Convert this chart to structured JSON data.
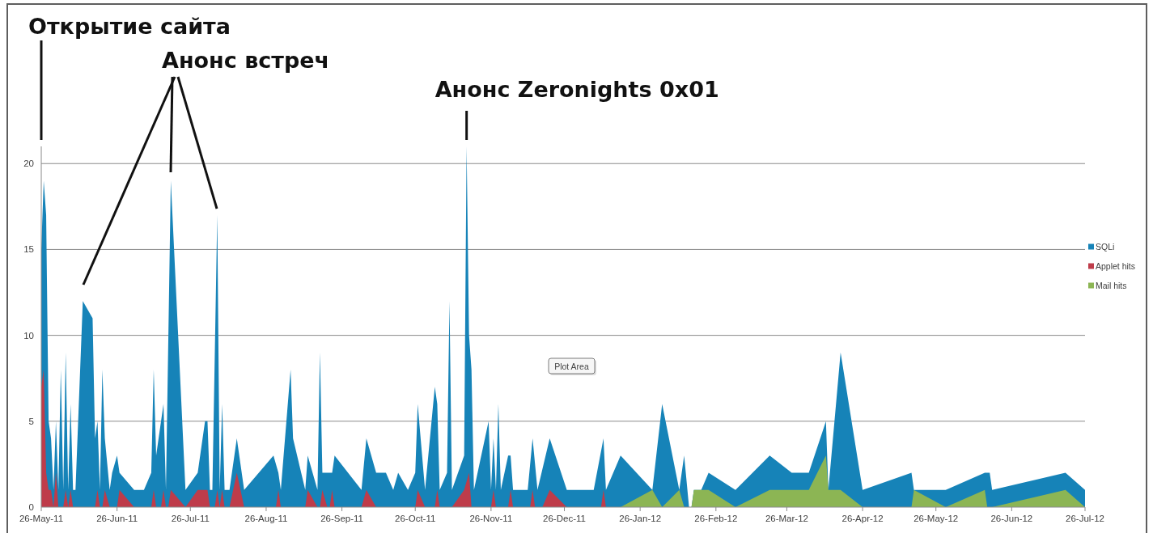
{
  "chart_data": {
    "type": "area",
    "annotations": [
      "Открытие сайта",
      "Анонс встреч",
      {
        "text": "Анонс Zeronights 0x01",
        "x": "2011-11-16",
        "y": 21
      },
      "Plot Area"
    ],
    "xlim": [
      "2011-05-26",
      "2012-07-26"
    ],
    "xticks": [
      {
        "value": "2011-05-26",
        "label": "26-May-11"
      },
      {
        "value": "2011-06-26",
        "label": "26-Jun-11"
      },
      {
        "value": "2011-07-26",
        "label": "26-Jul-11"
      },
      {
        "value": "2011-08-26",
        "label": "26-Aug-11"
      },
      {
        "value": "2011-09-26",
        "label": "26-Sep-11"
      },
      {
        "value": "2011-10-26",
        "label": "26-Oct-11"
      },
      {
        "value": "2011-11-26",
        "label": "26-Nov-11"
      },
      {
        "value": "2011-12-26",
        "label": "26-Dec-11"
      },
      {
        "value": "2012-01-26",
        "label": "26-Jan-12"
      },
      {
        "value": "2012-02-26",
        "label": "26-Feb-12"
      },
      {
        "value": "2012-03-26",
        "label": "26-Mar-12"
      },
      {
        "value": "2012-04-26",
        "label": "26-Apr-12"
      },
      {
        "value": "2012-05-26",
        "label": "26-May-12"
      },
      {
        "value": "2012-06-26",
        "label": "26-Jun-12"
      },
      {
        "value": "2012-07-26",
        "label": "26-Jul-12"
      }
    ],
    "ylim": [
      0,
      21
    ],
    "yticks": [
      0,
      5,
      10,
      15,
      20
    ],
    "grid": "y",
    "legend": "right",
    "series": [
      {
        "name": "SQLi",
        "color": "#1683b8",
        "x": [
          "2011-05-26",
          "2011-05-27",
          "2011-05-28",
          "2011-05-29",
          "2011-05-30",
          "2011-05-31",
          "2011-06-01",
          "2011-06-02",
          "2011-06-03",
          "2011-06-04",
          "2011-06-05",
          "2011-06-06",
          "2011-06-07",
          "2011-06-08",
          "2011-06-09",
          "2011-06-12",
          "2011-06-16",
          "2011-06-17",
          "2011-06-18",
          "2011-06-19",
          "2011-06-20",
          "2011-06-21",
          "2011-06-23",
          "2011-06-24",
          "2011-06-26",
          "2011-06-27",
          "2011-07-03",
          "2011-07-07",
          "2011-07-10",
          "2011-07-11",
          "2011-07-12",
          "2011-07-15",
          "2011-07-16",
          "2011-07-18",
          "2011-07-24",
          "2011-07-29",
          "2011-08-01",
          "2011-08-02",
          "2011-08-03",
          "2011-08-04",
          "2011-08-06",
          "2011-08-07",
          "2011-08-08",
          "2011-08-09",
          "2011-08-11",
          "2011-08-14",
          "2011-08-17",
          "2011-08-29",
          "2011-08-31",
          "2011-09-01",
          "2011-09-05",
          "2011-09-06",
          "2011-09-11",
          "2011-09-12",
          "2011-09-16",
          "2011-09-17",
          "2011-09-18",
          "2011-09-22",
          "2011-09-23",
          "2011-10-04",
          "2011-10-06",
          "2011-10-10",
          "2011-10-14",
          "2011-10-17",
          "2011-10-19",
          "2011-10-23",
          "2011-10-26",
          "2011-10-27",
          "2011-10-30",
          "2011-11-03",
          "2011-11-04",
          "2011-11-05",
          "2011-11-08",
          "2011-11-09",
          "2011-11-10",
          "2011-11-15",
          "2011-11-16",
          "2011-11-17",
          "2011-11-18",
          "2011-11-19",
          "2011-11-25",
          "2011-11-26",
          "2011-11-27",
          "2011-11-28",
          "2011-11-29",
          "2011-11-30",
          "2011-12-03",
          "2011-12-04",
          "2011-12-05",
          "2011-12-11",
          "2011-12-13",
          "2011-12-15",
          "2011-12-20",
          "2011-12-27",
          "2012-01-07",
          "2012-01-11",
          "2012-01-12",
          "2012-01-18",
          "2012-01-31",
          "2012-02-04",
          "2012-02-11",
          "2012-02-13",
          "2012-02-15",
          "2012-02-16",
          "2012-02-17",
          "2012-02-20",
          "2012-02-23",
          "2012-03-05",
          "2012-03-19",
          "2012-03-28",
          "2012-04-04",
          "2012-04-11",
          "2012-04-12",
          "2012-04-17",
          "2012-04-26",
          "2012-05-16",
          "2012-05-17",
          "2012-05-30",
          "2012-06-15",
          "2012-06-17",
          "2012-06-18",
          "2012-07-18",
          "2012-07-26"
        ],
        "values": [
          15,
          19,
          17,
          5,
          4,
          1,
          5,
          1,
          8,
          1,
          9,
          1,
          6,
          1,
          1,
          12,
          11,
          4,
          5,
          1,
          8,
          4,
          1,
          2,
          3,
          2,
          1,
          1,
          2,
          8,
          3,
          6,
          1,
          19,
          1,
          2,
          5,
          5,
          1,
          1,
          17,
          1,
          6,
          1,
          1,
          4,
          1,
          3,
          2,
          1,
          8,
          4,
          1,
          3,
          1,
          9,
          2,
          2,
          3,
          1,
          4,
          2,
          2,
          1,
          2,
          1,
          2,
          6,
          1,
          7,
          6,
          1,
          2,
          12,
          1,
          3,
          21,
          10,
          8,
          1,
          5,
          1,
          4,
          1,
          6,
          1,
          3,
          3,
          1,
          1,
          4,
          1,
          4,
          1,
          1,
          4,
          1,
          3,
          1,
          6,
          1,
          3,
          0,
          0,
          1,
          1,
          2,
          1,
          3,
          2,
          2,
          5,
          1,
          9,
          1,
          2,
          1,
          1,
          2,
          2,
          1,
          2,
          1
        ]
      },
      {
        "name": "Applet hits",
        "color": "#be3c4a",
        "x": [
          "2011-05-26",
          "2011-05-27",
          "2011-05-28",
          "2011-05-29",
          "2011-05-30",
          "2011-05-31",
          "2011-06-01",
          "2011-06-02",
          "2011-06-04",
          "2011-06-05",
          "2011-06-06",
          "2011-06-07",
          "2011-06-08",
          "2011-06-17",
          "2011-06-18",
          "2011-06-19",
          "2011-06-20",
          "2011-06-21",
          "2011-06-23",
          "2011-06-26",
          "2011-06-27",
          "2011-07-03",
          "2011-07-10",
          "2011-07-11",
          "2011-07-12",
          "2011-07-14",
          "2011-07-15",
          "2011-07-16",
          "2011-07-17",
          "2011-07-18",
          "2011-07-24",
          "2011-07-29",
          "2011-08-02",
          "2011-08-03",
          "2011-08-05",
          "2011-08-06",
          "2011-08-07",
          "2011-08-08",
          "2011-08-09",
          "2011-08-11",
          "2011-08-14",
          "2011-08-17",
          "2011-08-30",
          "2011-08-31",
          "2011-09-01",
          "2011-09-11",
          "2011-09-12",
          "2011-09-16",
          "2011-09-17",
          "2011-09-18",
          "2011-09-20",
          "2011-09-21",
          "2011-09-22",
          "2011-09-23",
          "2011-10-04",
          "2011-10-06",
          "2011-10-10",
          "2011-10-26",
          "2011-10-27",
          "2011-10-30",
          "2011-11-03",
          "2011-11-04",
          "2011-11-05",
          "2011-11-10",
          "2011-11-15",
          "2011-11-17",
          "2011-11-18",
          "2011-11-26",
          "2011-11-27",
          "2011-11-28",
          "2011-12-03",
          "2011-12-04",
          "2011-12-05",
          "2011-12-12",
          "2011-12-13",
          "2011-12-14",
          "2011-12-17",
          "2011-12-20",
          "2011-12-27",
          "2012-01-10",
          "2012-01-11",
          "2012-01-12"
        ],
        "values": [
          7,
          8,
          2,
          1,
          1,
          0,
          2,
          0,
          0,
          1,
          0,
          1,
          0,
          0,
          1,
          0,
          0,
          1,
          0,
          0,
          1,
          0,
          0,
          1,
          0,
          0,
          1,
          0,
          0,
          1,
          0,
          1,
          1,
          0,
          0,
          1,
          0,
          1,
          0,
          0,
          2,
          0,
          0,
          1,
          0,
          0,
          1,
          0,
          0,
          1,
          0,
          0,
          1,
          0,
          0,
          1,
          0,
          0,
          1,
          0,
          0,
          1,
          0,
          0,
          1,
          2,
          0,
          0,
          1,
          0,
          0,
          1,
          0,
          0,
          1,
          0,
          0,
          1,
          0,
          0,
          1,
          0
        ]
      },
      {
        "name": "Mail hits",
        "color": "#8cb554",
        "x": [
          "2012-01-18",
          "2012-01-31",
          "2012-02-04",
          "2012-02-11",
          "2012-02-13",
          "2012-02-16",
          "2012-02-17",
          "2012-02-23",
          "2012-03-05",
          "2012-03-19",
          "2012-04-04",
          "2012-04-11",
          "2012-04-12",
          "2012-04-17",
          "2012-04-26",
          "2012-05-16",
          "2012-05-17",
          "2012-05-30",
          "2012-06-15",
          "2012-06-16",
          "2012-06-18",
          "2012-07-18",
          "2012-07-26"
        ],
        "values": [
          0,
          1,
          0,
          1,
          0,
          0,
          1,
          1,
          0,
          1,
          1,
          3,
          1,
          1,
          0,
          0,
          1,
          0,
          1,
          0,
          0,
          1,
          0
        ]
      }
    ]
  }
}
